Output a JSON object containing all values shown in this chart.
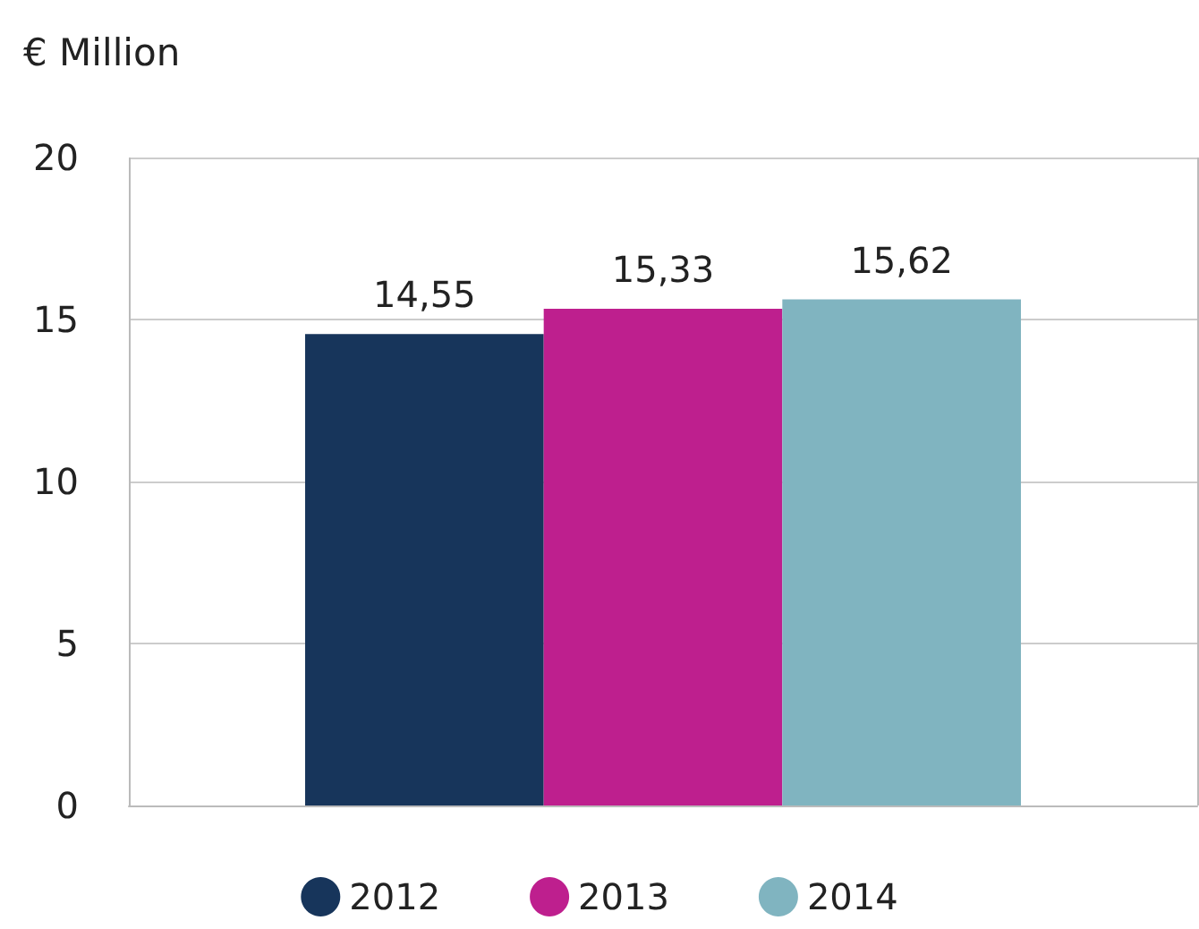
{
  "chart_data": {
    "type": "bar",
    "ylabel": "€ Million",
    "categories": [
      null
    ],
    "series": [
      {
        "name": "2012",
        "color": "#17355b",
        "values": [
          14.55
        ],
        "value_labels": [
          "14,55"
        ]
      },
      {
        "name": "2013",
        "color": "#be1f8e",
        "values": [
          15.33
        ],
        "value_labels": [
          "15,33"
        ]
      },
      {
        "name": "2014",
        "color": "#80b4c0",
        "values": [
          15.62
        ],
        "value_labels": [
          "15,62"
        ]
      }
    ],
    "ylim": [
      0,
      20
    ],
    "yticks": [
      0,
      5,
      10,
      15,
      20
    ],
    "grid": "y",
    "legend": "bottom"
  }
}
